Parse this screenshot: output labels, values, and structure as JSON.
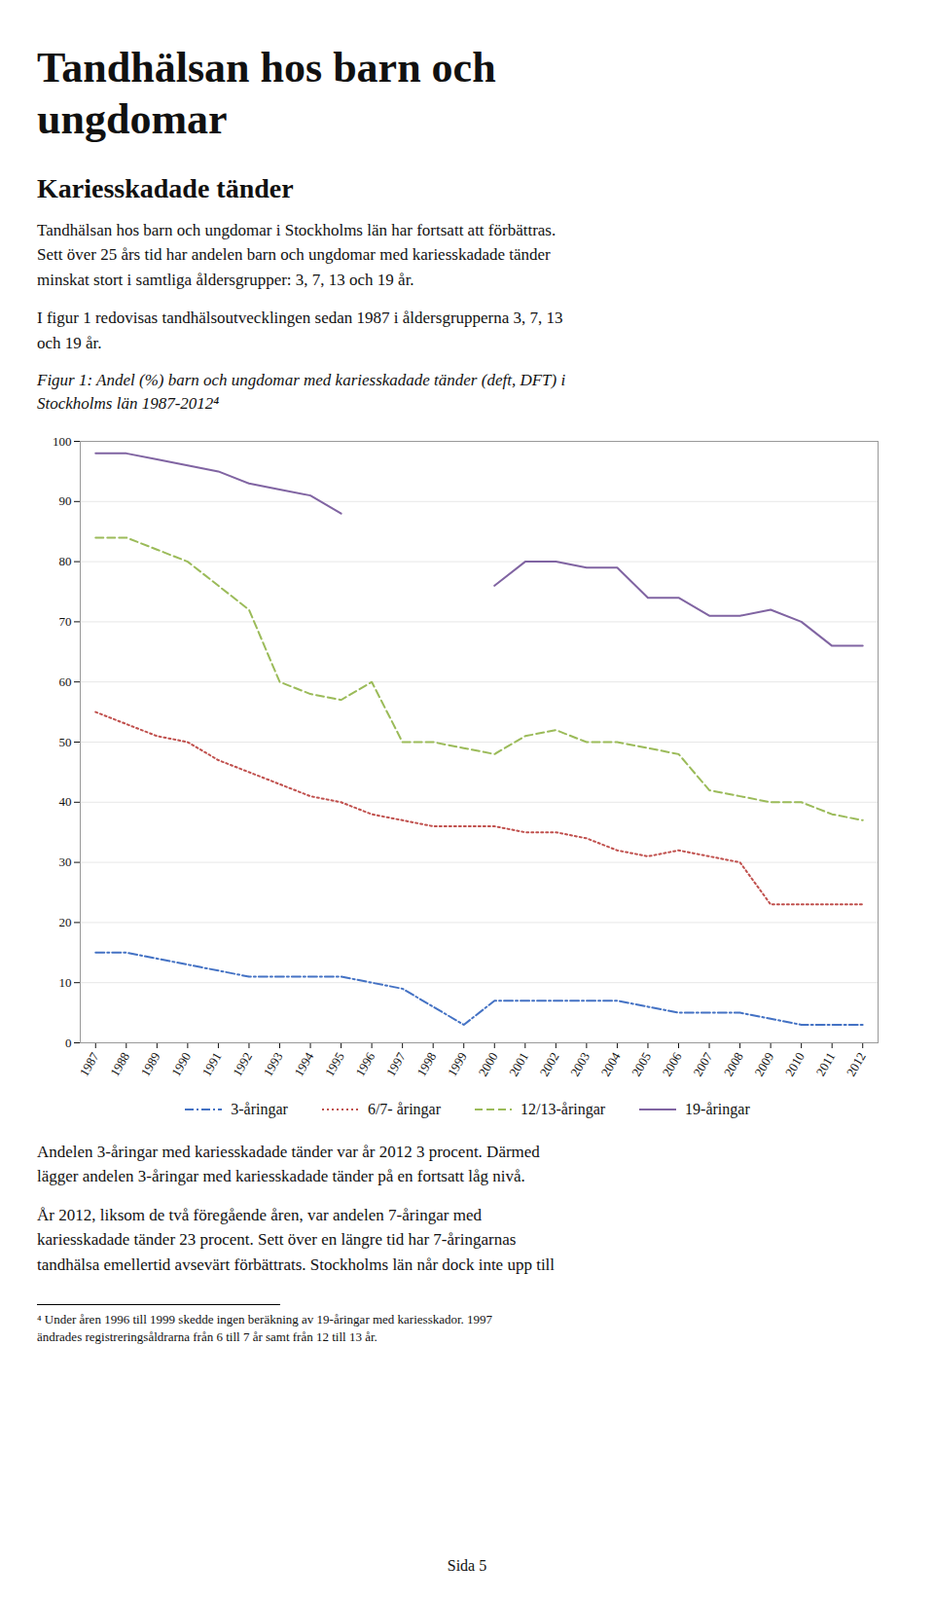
{
  "chart_data": {
    "type": "line",
    "title": "Tandhälsan hos barn och\nungdomar",
    "subtitle": "Kariesskadade tänder",
    "annotations": [
      "Tandhälsan hos barn och ungdomar i Stockholms län har fortsatt att förbättras.\nSett över 25 års tid har andelen barn och ungdomar med kariesskadade tänder\nminskat stort i samtliga åldersgrupper: 3, 7, 13 och 19 år.",
      "I figur 1 redovisas tandhälsoutvecklingen sedan 1987 i åldersgrupperna 3, 7, 13\noch 19 år.",
      "Figur 1: Andel (%) barn och ungdomar med kariesskadade tänder (deft, DFT) i\nStockholms län 1987-2012⁴",
      "Andelen 3-åringar med kariesskadade tänder var år 2012 3 procent. Därmed\nlägger andelen 3-åringar med kariesskadade tänder på en fortsatt låg nivå.",
      "År 2012, liksom de två föregående åren, var andelen 7-åringar med\nkariesskadade tänder 23 procent. Sett över en längre tid har 7-åringarnas\ntandhälsa emellertid avsevärt förbättrats. Stockholms län når dock inte upp till",
      "⁴ Under åren 1996 till 1999 skedde ingen beräkning av 19-åringar med kariesskador. 1997\nändrades registreringsåldrarna från 6 till 7 år samt från 12 till 13 år.",
      "Sida 5"
    ],
    "x": [
      1987,
      1988,
      1989,
      1990,
      1991,
      1992,
      1993,
      1994,
      1995,
      1996,
      1997,
      1998,
      1999,
      2000,
      2001,
      2002,
      2003,
      2004,
      2005,
      2006,
      2007,
      2008,
      2009,
      2010,
      2011,
      2012
    ],
    "series": [
      {
        "name": "3-åringar",
        "color": "#4472C4",
        "line_style": "dashdot",
        "values": [
          15,
          15,
          14,
          13,
          12,
          11,
          11,
          11,
          11,
          10,
          9,
          6,
          3,
          7,
          7,
          7,
          7,
          7,
          6,
          5,
          5,
          5,
          4,
          3,
          3,
          3
        ]
      },
      {
        "name": "6/7- åringar",
        "color": "#C0504D",
        "line_style": "dotted",
        "values": [
          55,
          53,
          51,
          50,
          47,
          45,
          43,
          41,
          40,
          38,
          37,
          36,
          36,
          36,
          35,
          35,
          34,
          32,
          31,
          32,
          31,
          30,
          23,
          23,
          23,
          23
        ]
      },
      {
        "name": "12/13-åringar",
        "color": "#9BBB59",
        "line_style": "dashed",
        "values": [
          84,
          84,
          82,
          80,
          76,
          72,
          60,
          58,
          57,
          60,
          50,
          50,
          49,
          48,
          51,
          52,
          50,
          50,
          49,
          48,
          42,
          41,
          40,
          40,
          38,
          37
        ]
      },
      {
        "name": "19-åringar",
        "color": "#8064A2",
        "line_style": "solid",
        "values": [
          98,
          98,
          97,
          96,
          95,
          93,
          92,
          91,
          88,
          null,
          null,
          null,
          null,
          76,
          80,
          80,
          79,
          79,
          74,
          74,
          71,
          71,
          72,
          70,
          66,
          66
        ]
      }
    ],
    "xlim": [
      1986.5,
      2012.5
    ],
    "xticks": [
      1987,
      1988,
      1989,
      1990,
      1991,
      1992,
      1993,
      1994,
      1995,
      1996,
      1997,
      1998,
      1999,
      2000,
      2001,
      2002,
      2003,
      2004,
      2005,
      2006,
      2007,
      2008,
      2009,
      2010,
      2011,
      2012
    ],
    "ylim": [
      0,
      100
    ],
    "yticks": [
      0,
      10,
      20,
      30,
      40,
      50,
      60,
      70,
      80,
      90,
      100
    ],
    "grid": true,
    "legend": "bottom"
  }
}
